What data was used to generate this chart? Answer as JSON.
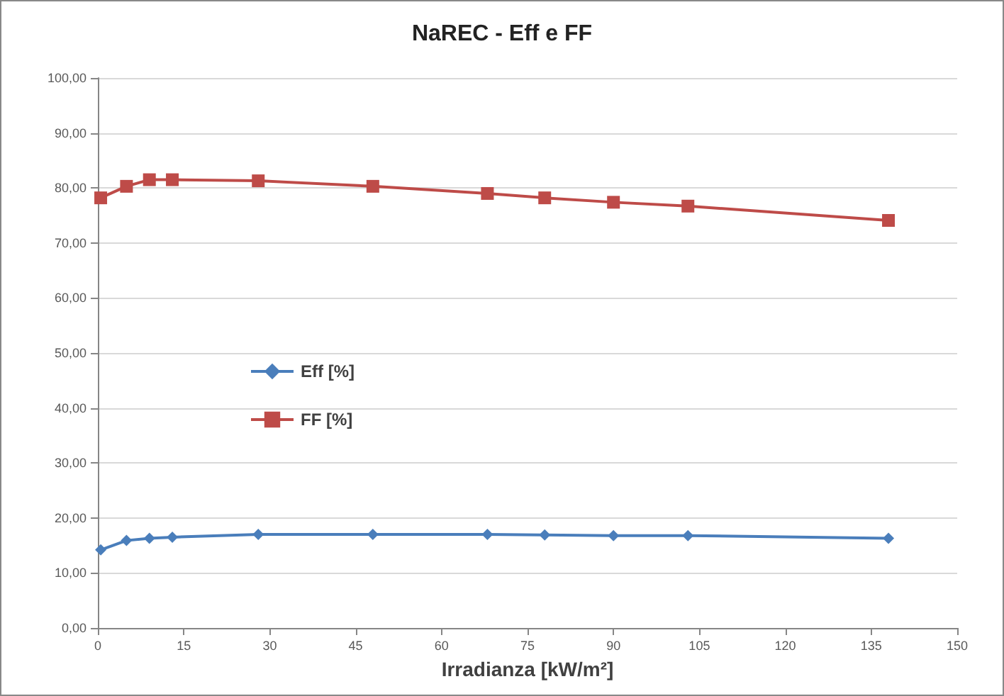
{
  "chart_data": {
    "type": "line",
    "title": "NaREC - Eff e FF",
    "xlabel": "Irradianza [kW/m²]",
    "x": [
      0.5,
      5,
      9,
      13,
      28,
      48,
      68,
      78,
      90,
      103,
      138
    ],
    "xlim": [
      0,
      150
    ],
    "xticks": [
      0,
      15,
      30,
      45,
      60,
      75,
      90,
      105,
      120,
      135,
      150
    ],
    "ylim": [
      0,
      100
    ],
    "yticks": [
      {
        "value": 0,
        "label": "0,00"
      },
      {
        "value": 10,
        "label": "10,00"
      },
      {
        "value": 20,
        "label": "20,00"
      },
      {
        "value": 30,
        "label": "30,00"
      },
      {
        "value": 40,
        "label": "40,00"
      },
      {
        "value": 50,
        "label": "50,00"
      },
      {
        "value": 60,
        "label": "60,00"
      },
      {
        "value": 70,
        "label": "70,00"
      },
      {
        "value": 80,
        "label": "80,00"
      },
      {
        "value": 90,
        "label": "90,00"
      },
      {
        "value": 100,
        "label": "100,00"
      }
    ],
    "series": [
      {
        "name": "Eff [%]",
        "color": "#4a7ebb",
        "marker": "diamond",
        "values": [
          14.2,
          15.9,
          16.3,
          16.5,
          17,
          17,
          17,
          16.9,
          16.8,
          16.8,
          16.3
        ]
      },
      {
        "name": "FF [%]",
        "color": "#be4b48",
        "marker": "square",
        "values": [
          78.2,
          80.3,
          81.5,
          81.5,
          81.3,
          80.3,
          79,
          78.2,
          77.4,
          76.7,
          74.1
        ]
      }
    ],
    "grid": "y",
    "legend": "left"
  }
}
